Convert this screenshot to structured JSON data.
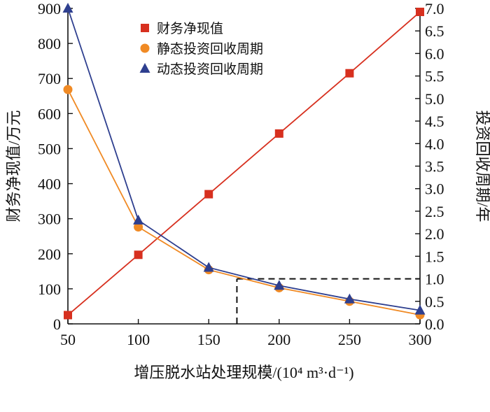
{
  "chart_data": {
    "type": "line",
    "x": [
      50,
      100,
      150,
      200,
      250,
      300
    ],
    "xlim": [
      50,
      300
    ],
    "xticks": [
      "50",
      "100",
      "150",
      "200",
      "250",
      "300"
    ],
    "xlabel": "增压脱水站处理规模/(10⁴ m³·d⁻¹)",
    "ylabel_left": "财务净现值/万元",
    "ylim_left": [
      0,
      900
    ],
    "yticks_left": [
      "0",
      "100",
      "200",
      "300",
      "400",
      "500",
      "600",
      "700",
      "800",
      "900"
    ],
    "ylabel_right": "投资回收周期/年",
    "ylim_right": [
      0,
      7
    ],
    "yticks_right": [
      "0.0",
      "0.5",
      "1.0",
      "1.5",
      "2.0",
      "2.5",
      "3.0",
      "3.5",
      "4.0",
      "4.5",
      "5.0",
      "5.5",
      "6.0",
      "6.5",
      "7.0"
    ],
    "series": [
      {
        "name": "财务净现值",
        "axis": "left",
        "marker": "square",
        "color": "#d7301f",
        "values": [
          25,
          197,
          370,
          543,
          715,
          890
        ]
      },
      {
        "name": "静态投资回收周期",
        "axis": "right",
        "marker": "circle",
        "color": "#f08a24",
        "values": [
          5.2,
          2.15,
          1.2,
          0.8,
          0.5,
          0.2
        ]
      },
      {
        "name": "动态投资回收周期",
        "axis": "right",
        "marker": "triangle",
        "color": "#2e3f8f",
        "values": [
          7.0,
          2.3,
          1.25,
          0.85,
          0.55,
          0.3
        ]
      }
    ],
    "reference_lines": {
      "x": 170,
      "y_right": 1.0,
      "style": "dashed"
    },
    "grid": false,
    "legend_position": "top"
  }
}
